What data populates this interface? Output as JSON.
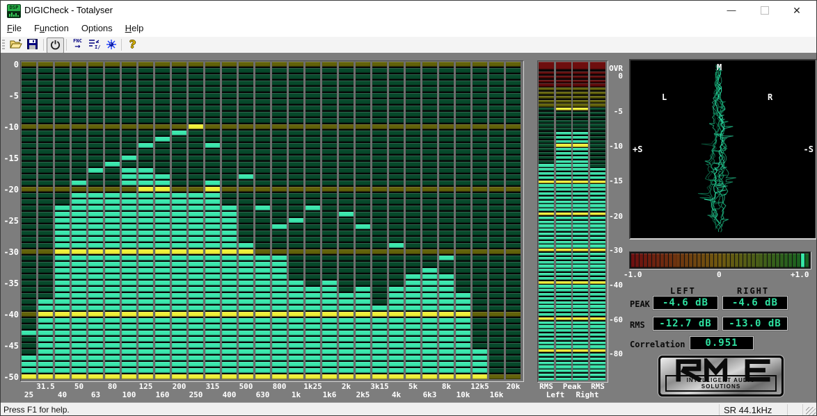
{
  "window": {
    "title": "DIGICheck - Totalyser",
    "minimize": "—",
    "maximize": "",
    "close": "✕"
  },
  "menu": {
    "items": [
      {
        "label": "File",
        "underline": 0
      },
      {
        "label": "Function",
        "underline": 1
      },
      {
        "label": "Options",
        "underline": -1
      },
      {
        "label": "Help",
        "underline": 0
      }
    ]
  },
  "toolbar": {
    "fnc_label": "FNC",
    "fnc_arrow": "→",
    "io_label": "I/o",
    "help_label": "?"
  },
  "colors": {
    "lit_cyan": "#3BE7AD",
    "lit_yellow": "#F0F03A",
    "unlit_green": "#07492B",
    "unlit_olive": "#62620A",
    "unlit_red": "#5E0A0A",
    "ovr_red": "#6E0E0E",
    "lcd_green": "#2EE0A0",
    "client_bg": "#7D7D7D"
  },
  "spectrum": {
    "db_labels": [
      "0",
      "-5",
      "-10",
      "-15",
      "-20",
      "-25",
      "-30",
      "-35",
      "-40",
      "-45",
      "-50"
    ],
    "db_min": 0,
    "db_max": -50,
    "bands": [
      {
        "label": "25",
        "level": -47,
        "peak": -43,
        "extra": []
      },
      {
        "label": "31.5",
        "level": -38,
        "peak": null,
        "extra": []
      },
      {
        "label": "40",
        "level": -23,
        "peak": null,
        "extra": []
      },
      {
        "label": "50",
        "level": -21,
        "peak": -19,
        "extra": []
      },
      {
        "label": "63",
        "level": -21,
        "peak": -17,
        "extra": []
      },
      {
        "label": "80",
        "level": -21,
        "peak": -16,
        "extra": []
      },
      {
        "label": "100",
        "level": -21,
        "peak": -15,
        "extra": [
          -17,
          -18,
          -19
        ]
      },
      {
        "label": "125",
        "level": -17,
        "peak": -13,
        "extra": []
      },
      {
        "label": "160",
        "level": -18,
        "peak": -12,
        "extra": []
      },
      {
        "label": "200",
        "level": -21,
        "peak": -11,
        "extra": []
      },
      {
        "label": "250",
        "level": -21,
        "peak": -10,
        "extra": []
      },
      {
        "label": "315",
        "level": -19,
        "peak": -13,
        "extra": []
      },
      {
        "label": "400",
        "level": -23,
        "peak": null,
        "extra": []
      },
      {
        "label": "500",
        "level": -29,
        "peak": -18,
        "extra": []
      },
      {
        "label": "630",
        "level": -31,
        "peak": -23,
        "extra": []
      },
      {
        "label": "800",
        "level": -31,
        "peak": -26,
        "extra": []
      },
      {
        "label": "1k",
        "level": -35,
        "peak": -25,
        "extra": []
      },
      {
        "label": "1k25",
        "level": -36,
        "peak": -23,
        "extra": []
      },
      {
        "label": "1k6",
        "level": -35,
        "peak": null,
        "extra": []
      },
      {
        "label": "2k",
        "level": -37,
        "peak": -24,
        "extra": []
      },
      {
        "label": "2k5",
        "level": -36,
        "peak": -26,
        "extra": []
      },
      {
        "label": "3k15",
        "level": -39,
        "peak": null,
        "extra": []
      },
      {
        "label": "4k",
        "level": -36,
        "peak": -29,
        "extra": []
      },
      {
        "label": "5k",
        "level": -34,
        "peak": null,
        "extra": []
      },
      {
        "label": "6k3",
        "level": -33,
        "peak": null,
        "extra": []
      },
      {
        "label": "8k",
        "level": -34,
        "peak": -31,
        "extra": []
      },
      {
        "label": "10k",
        "level": -37,
        "peak": null,
        "extra": []
      },
      {
        "label": "12k5",
        "level": -46,
        "peak": null,
        "extra": []
      },
      {
        "label": "16k",
        "level": null,
        "peak": null,
        "extra": []
      },
      {
        "label": "20k",
        "level": null,
        "peak": null,
        "extra": []
      }
    ]
  },
  "meters": {
    "scale_labels": [
      "OVR",
      "0",
      "-5",
      "-10",
      "-15",
      "-20",
      "-30",
      "-40",
      "-60",
      "-80"
    ],
    "columns": [
      {
        "name": "rms-left",
        "value": -12.7,
        "hold": null
      },
      {
        "name": "peak-left",
        "value": -8.3,
        "hold": -4.6
      },
      {
        "name": "peak-right",
        "value": -8.3,
        "hold": -4.6
      },
      {
        "name": "rms-right",
        "value": -13.0,
        "hold": null
      }
    ],
    "bottom_row1": [
      "RMS",
      "Peak",
      "RMS"
    ],
    "bottom_row2": [
      "Left",
      "Right"
    ]
  },
  "vectorscope": {
    "top": "M",
    "left": "L",
    "right": "R",
    "left_mid": "+S",
    "right_mid": "-S"
  },
  "correlation": {
    "value": 0.951,
    "min_label": "-1.0",
    "mid_label": "0",
    "max_label": "+1.0"
  },
  "readouts": {
    "left_header": "LEFT",
    "right_header": "RIGHT",
    "peak_label": "PEAK",
    "rms_label": "RMS",
    "peak_left": "-4.6 dB",
    "peak_right": "-4.6 dB",
    "rms_left": "-12.7 dB",
    "rms_right": "-13.0 dB",
    "correlation_label": "Correlation",
    "correlation_value": "0.951"
  },
  "logo": {
    "subtitle": "INTELLIGENT AUDIO SOLUTIONS"
  },
  "status_bar": {
    "message": "Press F1 for help.",
    "sample_rate": "SR 44.1kHz"
  }
}
